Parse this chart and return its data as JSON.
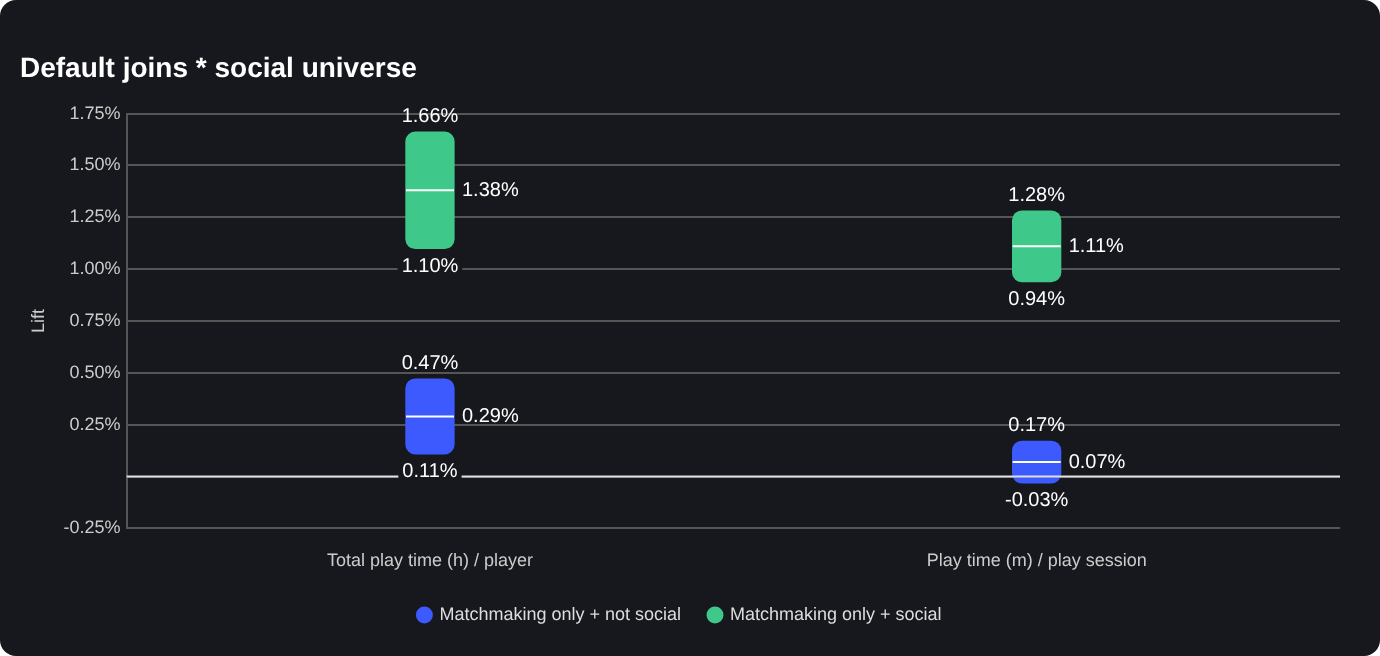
{
  "chart_data": {
    "type": "box",
    "title": "Default joins * social universe",
    "ylabel": "Lift",
    "categories": [
      "Total play time (h) / player",
      "Play time (m) / play session"
    ],
    "series": [
      {
        "name": "Matchmaking only + not social",
        "color": "#3d5afe",
        "boxes": [
          {
            "low": 0.11,
            "q1": 0.11,
            "median": 0.29,
            "q3": 0.47,
            "high": 0.47
          },
          {
            "low": -0.03,
            "q1": -0.03,
            "median": 0.07,
            "q3": 0.17,
            "high": 0.17
          }
        ],
        "value_labels": [
          [
            "0.47%",
            "0.29%",
            "0.11%"
          ],
          [
            "0.17%",
            "0.07%",
            "-0.03%"
          ]
        ]
      },
      {
        "name": "Matchmaking only + social",
        "color": "#3ec98a",
        "boxes": [
          {
            "low": 1.1,
            "q1": 1.1,
            "median": 1.38,
            "q3": 1.66,
            "high": 1.66
          },
          {
            "low": 0.94,
            "q1": 0.94,
            "median": 1.11,
            "q3": 1.28,
            "high": 1.28
          }
        ],
        "value_labels": [
          [
            "1.66%",
            "1.38%",
            "1.10%"
          ],
          [
            "1.28%",
            "1.11%",
            "0.94%"
          ]
        ]
      }
    ],
    "ylim": [
      -0.25,
      1.75
    ],
    "yticks": [
      {
        "value": -0.25,
        "label": "-0.25%"
      },
      {
        "value": 0,
        "label": null
      },
      {
        "value": 0.25,
        "label": "0.25%"
      },
      {
        "value": 0.5,
        "label": "0.50%"
      },
      {
        "value": 0.75,
        "label": "0.75%"
      },
      {
        "value": 1.0,
        "label": "1.00%"
      },
      {
        "value": 1.25,
        "label": "1.25%"
      },
      {
        "value": 1.5,
        "label": "1.50%"
      },
      {
        "value": 1.75,
        "label": "1.75%"
      }
    ],
    "ref_lines": [
      {
        "axis": "y",
        "value": 0,
        "label": null,
        "color": "#e0e0e0"
      }
    ],
    "grid": "y",
    "legend": "bottom"
  }
}
